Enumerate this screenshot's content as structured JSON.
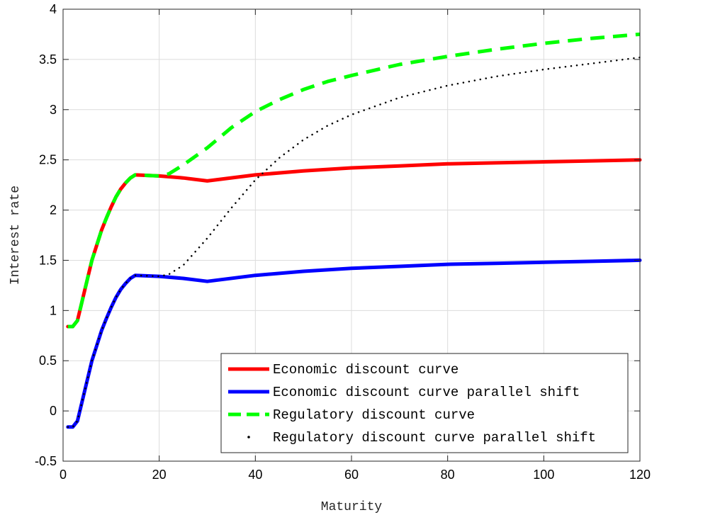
{
  "chart_data": {
    "type": "line",
    "title": "",
    "xlabel": "Maturity",
    "ylabel": "Interest rate",
    "xlim": [
      0,
      120
    ],
    "ylim": [
      -0.5,
      4
    ],
    "xticks": [
      0,
      20,
      40,
      60,
      80,
      100,
      120
    ],
    "xtick_labels": [
      "0",
      "20",
      "40",
      "60",
      "80",
      "100",
      "120"
    ],
    "yticks": [
      -0.5,
      0,
      0.5,
      1,
      1.5,
      2,
      2.5,
      3,
      3.5,
      4
    ],
    "ytick_labels": [
      "-0.5",
      "0",
      "0.5",
      "1",
      "1.5",
      "2",
      "2.5",
      "3",
      "3.5",
      "4"
    ],
    "grid": true,
    "legend_position": "bottom-right",
    "series": [
      {
        "name": "Economic discount curve",
        "color": "#ff0000",
        "style": "solid",
        "x": [
          1,
          2,
          3,
          4,
          5,
          6,
          7,
          8,
          9,
          10,
          11,
          12,
          13,
          14,
          15,
          20,
          25,
          30,
          40,
          50,
          60,
          70,
          80,
          90,
          100,
          110,
          120
        ],
        "y": [
          0.84,
          0.84,
          0.9,
          1.1,
          1.3,
          1.5,
          1.65,
          1.8,
          1.92,
          2.03,
          2.13,
          2.21,
          2.27,
          2.32,
          2.35,
          2.34,
          2.32,
          2.29,
          2.35,
          2.39,
          2.42,
          2.44,
          2.46,
          2.47,
          2.48,
          2.49,
          2.5
        ]
      },
      {
        "name": "Economic discount curve parallel shift",
        "color": "#0000ff",
        "style": "solid",
        "x": [
          1,
          2,
          3,
          4,
          5,
          6,
          7,
          8,
          9,
          10,
          11,
          12,
          13,
          14,
          15,
          20,
          25,
          30,
          40,
          50,
          60,
          70,
          80,
          90,
          100,
          110,
          120
        ],
        "y": [
          -0.16,
          -0.16,
          -0.1,
          0.1,
          0.3,
          0.5,
          0.65,
          0.8,
          0.92,
          1.03,
          1.13,
          1.21,
          1.27,
          1.32,
          1.35,
          1.34,
          1.32,
          1.29,
          1.35,
          1.39,
          1.42,
          1.44,
          1.46,
          1.47,
          1.48,
          1.49,
          1.5
        ]
      },
      {
        "name": "Regulatory discount curve",
        "color": "#00ff00",
        "style": "dashed",
        "x": [
          1,
          2,
          3,
          4,
          5,
          6,
          7,
          8,
          9,
          10,
          11,
          12,
          13,
          14,
          15,
          20,
          22,
          25,
          30,
          35,
          40,
          45,
          50,
          55,
          60,
          70,
          80,
          90,
          100,
          110,
          120
        ],
        "y": [
          0.84,
          0.84,
          0.9,
          1.1,
          1.3,
          1.5,
          1.65,
          1.8,
          1.92,
          2.03,
          2.13,
          2.21,
          2.27,
          2.32,
          2.35,
          2.34,
          2.36,
          2.45,
          2.62,
          2.82,
          2.98,
          3.1,
          3.2,
          3.28,
          3.34,
          3.45,
          3.53,
          3.6,
          3.66,
          3.71,
          3.75
        ]
      },
      {
        "name": "Regulatory discount curve parallel shift",
        "color": "#000000",
        "style": "dotted",
        "x": [
          1,
          2,
          3,
          4,
          5,
          6,
          7,
          8,
          9,
          10,
          11,
          12,
          13,
          14,
          15,
          20,
          22,
          25,
          30,
          35,
          40,
          45,
          50,
          55,
          60,
          70,
          80,
          90,
          100,
          110,
          120
        ],
        "y": [
          -0.16,
          -0.16,
          -0.1,
          0.1,
          0.3,
          0.5,
          0.65,
          0.8,
          0.92,
          1.03,
          1.13,
          1.21,
          1.27,
          1.32,
          1.35,
          1.34,
          1.36,
          1.45,
          1.72,
          2.02,
          2.3,
          2.52,
          2.7,
          2.84,
          2.95,
          3.12,
          3.24,
          3.33,
          3.4,
          3.46,
          3.52
        ]
      }
    ]
  }
}
